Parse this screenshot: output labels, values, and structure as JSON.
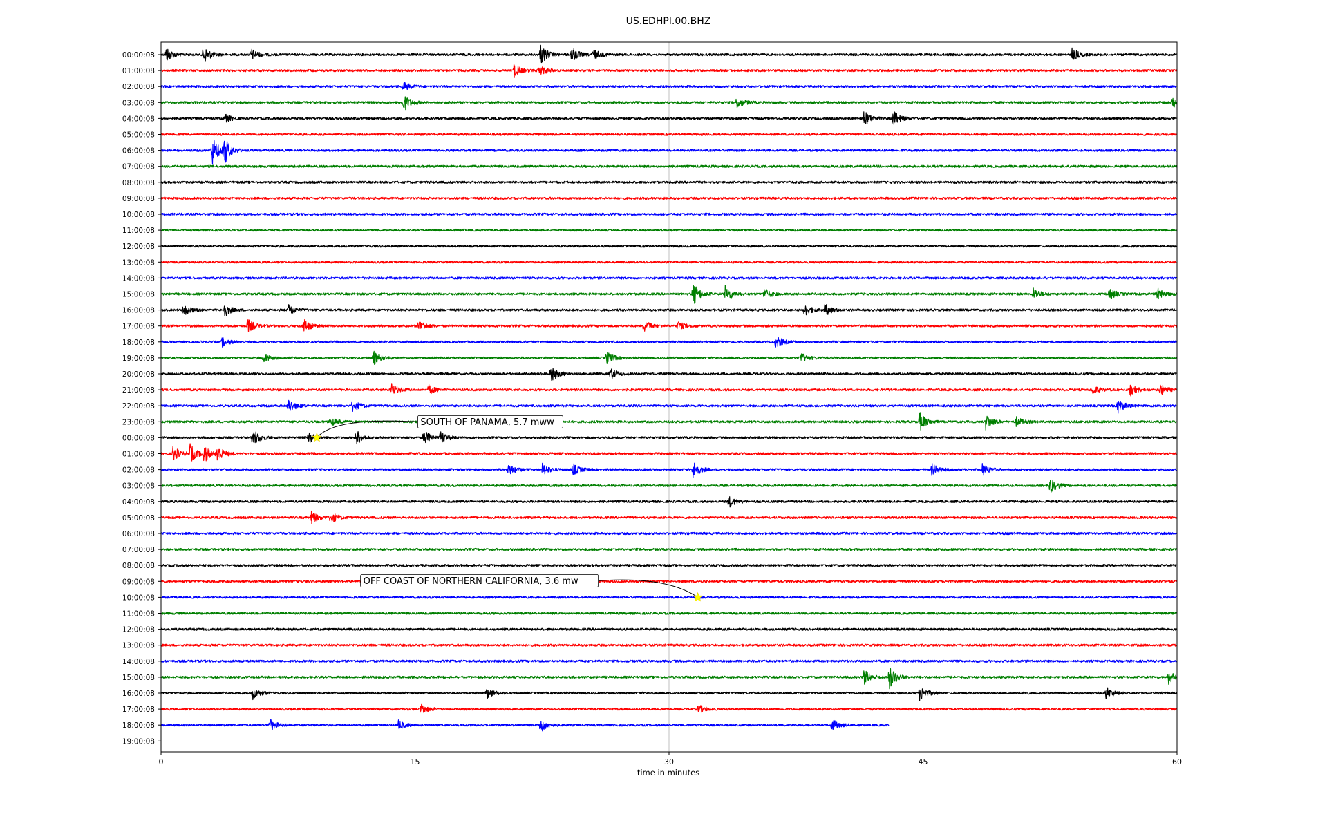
{
  "chart_data": {
    "type": "line",
    "title": "US.EDHPI.00.BHZ",
    "xlabel": "time in minutes",
    "ylabel": "",
    "xlim": [
      0,
      60
    ],
    "x_ticks": [
      0,
      15,
      30,
      45,
      60
    ],
    "grid": true,
    "trace_colors": [
      "#000000",
      "#ff0000",
      "#0000ff",
      "#007f00"
    ],
    "row_labels": [
      "00:00:08",
      "01:00:08",
      "02:00:08",
      "03:00:08",
      "04:00:08",
      "05:00:08",
      "06:00:08",
      "07:00:08",
      "08:00:08",
      "09:00:08",
      "10:00:08",
      "11:00:08",
      "12:00:08",
      "13:00:08",
      "14:00:08",
      "15:00:08",
      "16:00:08",
      "17:00:08",
      "18:00:08",
      "19:00:08",
      "20:00:08",
      "21:00:08",
      "22:00:08",
      "23:00:08",
      "00:00:08",
      "01:00:08",
      "02:00:08",
      "03:00:08",
      "04:00:08",
      "05:00:08",
      "06:00:08",
      "07:00:08",
      "08:00:08",
      "09:00:08",
      "10:00:08",
      "11:00:08",
      "12:00:08",
      "13:00:08",
      "14:00:08",
      "15:00:08",
      "16:00:08",
      "17:00:08",
      "18:00:08",
      "19:00:08"
    ],
    "trace_end_minutes": [
      60,
      60,
      60,
      60,
      60,
      60,
      60,
      60,
      60,
      60,
      60,
      60,
      60,
      60,
      60,
      60,
      60,
      60,
      60,
      60,
      60,
      60,
      60,
      60,
      60,
      60,
      60,
      60,
      60,
      60,
      60,
      60,
      60,
      60,
      60,
      60,
      60,
      60,
      60,
      60,
      60,
      60,
      43,
      0
    ],
    "bursts": [
      {
        "row": 0,
        "minute": 0.3,
        "amp": 0.5
      },
      {
        "row": 0,
        "minute": 2.5,
        "amp": 0.6
      },
      {
        "row": 0,
        "minute": 5.3,
        "amp": 0.4
      },
      {
        "row": 0,
        "minute": 22.4,
        "amp": 0.7
      },
      {
        "row": 0,
        "minute": 24.2,
        "amp": 0.6
      },
      {
        "row": 0,
        "minute": 25.5,
        "amp": 0.4
      },
      {
        "row": 0,
        "minute": 53.8,
        "amp": 0.4
      },
      {
        "row": 1,
        "minute": 20.8,
        "amp": 0.5
      },
      {
        "row": 1,
        "minute": 22.3,
        "amp": 0.4
      },
      {
        "row": 2,
        "minute": 14.3,
        "amp": 0.3
      },
      {
        "row": 3,
        "minute": 14.3,
        "amp": 0.6
      },
      {
        "row": 3,
        "minute": 34,
        "amp": 0.4
      },
      {
        "row": 3,
        "minute": 59.7,
        "amp": 0.4
      },
      {
        "row": 4,
        "minute": 3.7,
        "amp": 0.3
      },
      {
        "row": 4,
        "minute": 41.5,
        "amp": 0.5
      },
      {
        "row": 4,
        "minute": 43.2,
        "amp": 0.6
      },
      {
        "row": 6,
        "minute": 3,
        "amp": 1.0
      },
      {
        "row": 6,
        "minute": 3.7,
        "amp": 0.9
      },
      {
        "row": 15,
        "minute": 31.4,
        "amp": 0.8
      },
      {
        "row": 15,
        "minute": 33.3,
        "amp": 0.6
      },
      {
        "row": 15,
        "minute": 35.6,
        "amp": 0.4
      },
      {
        "row": 15,
        "minute": 51.5,
        "amp": 0.4
      },
      {
        "row": 15,
        "minute": 56,
        "amp": 0.4
      },
      {
        "row": 15,
        "minute": 58.8,
        "amp": 0.4
      },
      {
        "row": 16,
        "minute": 1.3,
        "amp": 0.4
      },
      {
        "row": 16,
        "minute": 3.7,
        "amp": 0.5
      },
      {
        "row": 16,
        "minute": 7.5,
        "amp": 0.4
      },
      {
        "row": 16,
        "minute": 38,
        "amp": 0.4
      },
      {
        "row": 16,
        "minute": 39.2,
        "amp": 0.4
      },
      {
        "row": 17,
        "minute": 5.1,
        "amp": 0.5
      },
      {
        "row": 17,
        "minute": 8.4,
        "amp": 0.5
      },
      {
        "row": 17,
        "minute": 15.2,
        "amp": 0.4
      },
      {
        "row": 17,
        "minute": 28.5,
        "amp": 0.4
      },
      {
        "row": 17,
        "minute": 30.5,
        "amp": 0.3
      },
      {
        "row": 18,
        "minute": 3.6,
        "amp": 0.3
      },
      {
        "row": 18,
        "minute": 36.3,
        "amp": 0.4
      },
      {
        "row": 19,
        "minute": 6,
        "amp": 0.3
      },
      {
        "row": 19,
        "minute": 12.5,
        "amp": 0.5
      },
      {
        "row": 19,
        "minute": 26.3,
        "amp": 0.4
      },
      {
        "row": 19,
        "minute": 37.8,
        "amp": 0.3
      },
      {
        "row": 20,
        "minute": 23,
        "amp": 0.6
      },
      {
        "row": 20,
        "minute": 26.5,
        "amp": 0.4
      },
      {
        "row": 21,
        "minute": 13.6,
        "amp": 0.4
      },
      {
        "row": 21,
        "minute": 15.8,
        "amp": 0.3
      },
      {
        "row": 21,
        "minute": 55,
        "amp": 0.3
      },
      {
        "row": 21,
        "minute": 57.2,
        "amp": 0.4
      },
      {
        "row": 21,
        "minute": 59,
        "amp": 0.4
      },
      {
        "row": 22,
        "minute": 7.5,
        "amp": 0.5
      },
      {
        "row": 22,
        "minute": 11.3,
        "amp": 0.4
      },
      {
        "row": 22,
        "minute": 56.5,
        "amp": 0.5
      },
      {
        "row": 23,
        "minute": 10,
        "amp": 0.3
      },
      {
        "row": 23,
        "minute": 44.8,
        "amp": 0.6
      },
      {
        "row": 23,
        "minute": 48.7,
        "amp": 0.5
      },
      {
        "row": 23,
        "minute": 50.5,
        "amp": 0.3
      },
      {
        "row": 24,
        "minute": 5.4,
        "amp": 0.6
      },
      {
        "row": 24,
        "minute": 8.7,
        "amp": 0.4
      },
      {
        "row": 24,
        "minute": 11.5,
        "amp": 0.5
      },
      {
        "row": 24,
        "minute": 15.5,
        "amp": 0.5
      },
      {
        "row": 24,
        "minute": 16.5,
        "amp": 0.4
      },
      {
        "row": 25,
        "minute": 0.7,
        "amp": 0.5
      },
      {
        "row": 25,
        "minute": 1.7,
        "amp": 0.6
      },
      {
        "row": 25,
        "minute": 2.5,
        "amp": 0.6
      },
      {
        "row": 25,
        "minute": 3.3,
        "amp": 0.6
      },
      {
        "row": 26,
        "minute": 20.5,
        "amp": 0.4
      },
      {
        "row": 26,
        "minute": 22.5,
        "amp": 0.4
      },
      {
        "row": 26,
        "minute": 24.3,
        "amp": 0.4
      },
      {
        "row": 26,
        "minute": 31.4,
        "amp": 0.6
      },
      {
        "row": 26,
        "minute": 45.5,
        "amp": 0.4
      },
      {
        "row": 26,
        "minute": 48.5,
        "amp": 0.4
      },
      {
        "row": 27,
        "minute": 52.5,
        "amp": 0.5
      },
      {
        "row": 28,
        "minute": 33.5,
        "amp": 0.4
      },
      {
        "row": 29,
        "minute": 8.8,
        "amp": 0.5
      },
      {
        "row": 29,
        "minute": 10,
        "amp": 0.4
      },
      {
        "row": 39,
        "minute": 41.5,
        "amp": 0.5
      },
      {
        "row": 39,
        "minute": 43,
        "amp": 0.8
      },
      {
        "row": 39,
        "minute": 59.5,
        "amp": 0.4
      },
      {
        "row": 40,
        "minute": 5.4,
        "amp": 0.4
      },
      {
        "row": 40,
        "minute": 19.2,
        "amp": 0.4
      },
      {
        "row": 40,
        "minute": 44.8,
        "amp": 0.5
      },
      {
        "row": 40,
        "minute": 55.8,
        "amp": 0.4
      },
      {
        "row": 41,
        "minute": 15.3,
        "amp": 0.4
      },
      {
        "row": 41,
        "minute": 31.7,
        "amp": 0.3
      },
      {
        "row": 42,
        "minute": 6.4,
        "amp": 0.4
      },
      {
        "row": 42,
        "minute": 14,
        "amp": 0.3
      },
      {
        "row": 42,
        "minute": 22.4,
        "amp": 0.5
      },
      {
        "row": 42,
        "minute": 39.6,
        "amp": 0.4
      }
    ],
    "events": [
      {
        "label": "SOUTH OF PANAMA, 5.7 mww",
        "row": 24,
        "minute": 9.2
      },
      {
        "label": "OFF COAST OF NORTHERN CALIFORNIA, 3.6 mw",
        "row": 34,
        "minute": 31.7
      }
    ]
  }
}
